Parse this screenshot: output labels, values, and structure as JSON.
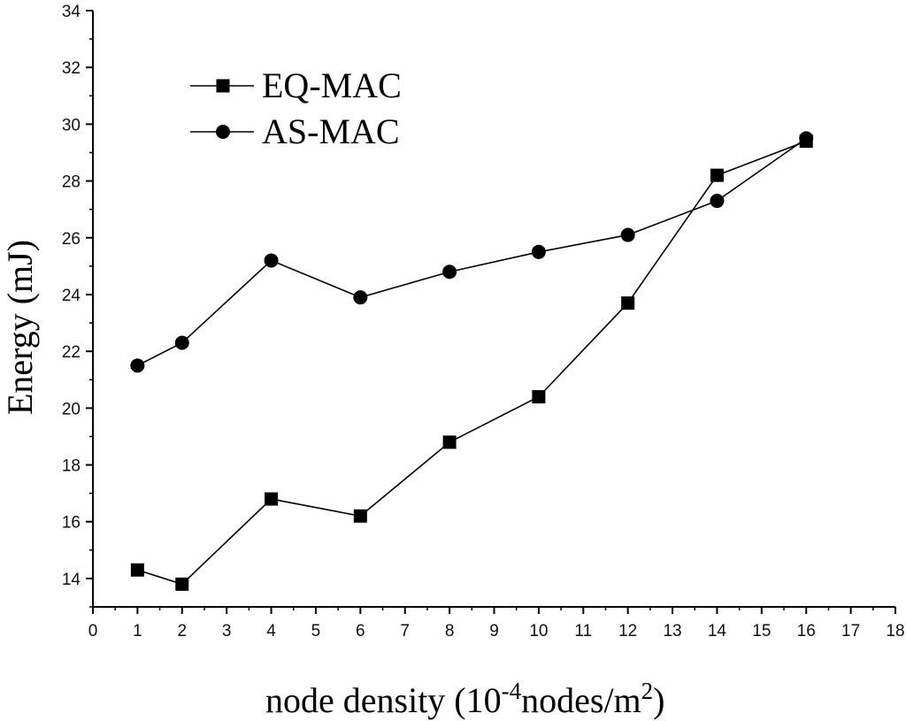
{
  "chart_data": {
    "type": "line",
    "xlabel": "node density  (10",
    "xlabel_exponent": "-4",
    "xlabel_unit": "nodes/m",
    "xlabel_unit_exponent": "2",
    "xlabel_close": ")",
    "ylabel": "Energy (mJ)",
    "xlim": [
      0,
      18
    ],
    "ylim": [
      13,
      34
    ],
    "x_ticks": [
      0,
      1,
      2,
      3,
      4,
      5,
      6,
      7,
      8,
      9,
      10,
      11,
      12,
      13,
      14,
      15,
      16,
      17,
      18
    ],
    "y_ticks": [
      14,
      16,
      18,
      20,
      22,
      24,
      26,
      28,
      30,
      32,
      34
    ],
    "grid": false,
    "legend_position": "top-left",
    "series": [
      {
        "name": "EQ-MAC",
        "marker": "square",
        "x": [
          1,
          2,
          4,
          6,
          8,
          10,
          12,
          14,
          16
        ],
        "y": [
          14.3,
          13.8,
          16.8,
          16.2,
          18.8,
          20.4,
          23.7,
          28.2,
          29.4
        ]
      },
      {
        "name": "AS-MAC",
        "marker": "circle",
        "x": [
          1,
          2,
          4,
          6,
          8,
          10,
          12,
          14,
          16
        ],
        "y": [
          21.5,
          22.3,
          25.2,
          23.9,
          24.8,
          25.5,
          26.1,
          27.3,
          29.5
        ]
      }
    ]
  }
}
